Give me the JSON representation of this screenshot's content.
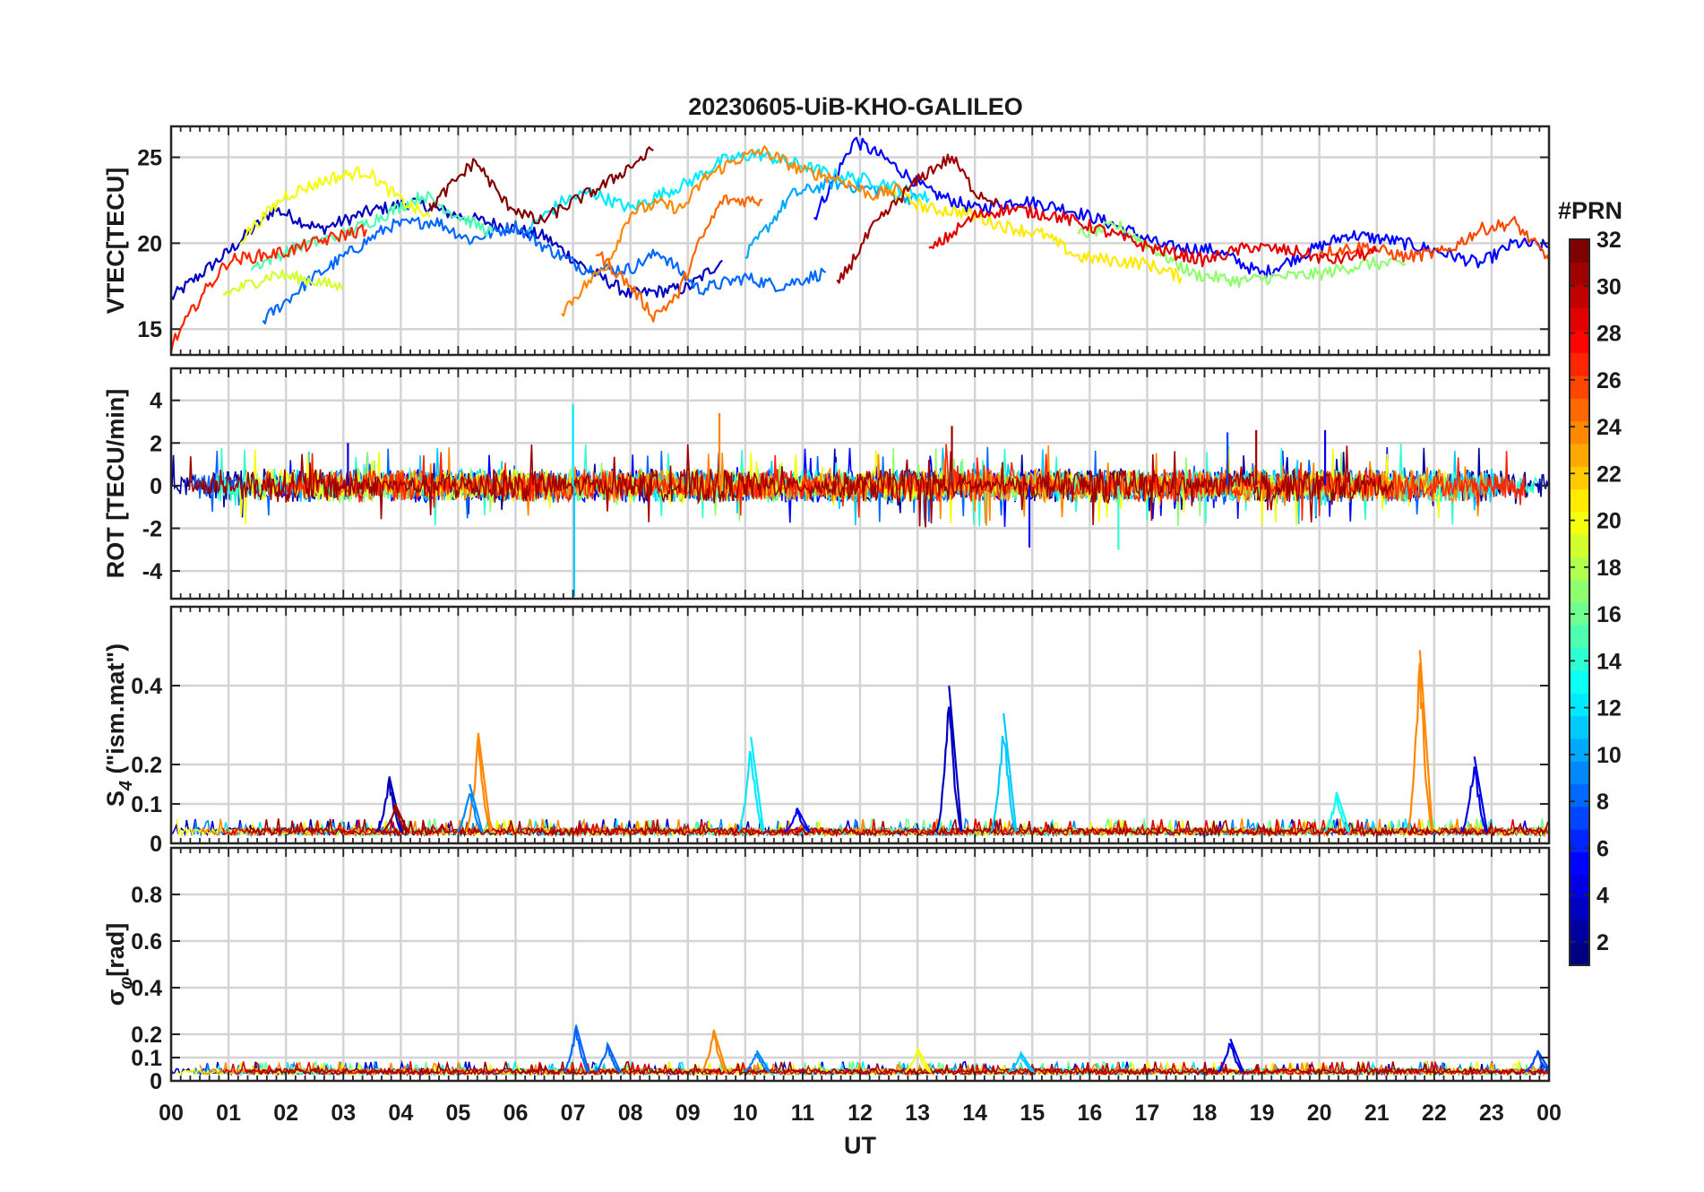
{
  "chart_data": {
    "type": "line",
    "title": "20230605-UiB-KHO-GALILEO",
    "xlabel": "UT",
    "x_ticks": [
      "00",
      "01",
      "02",
      "03",
      "04",
      "05",
      "06",
      "07",
      "08",
      "09",
      "10",
      "11",
      "12",
      "13",
      "14",
      "15",
      "16",
      "17",
      "18",
      "19",
      "20",
      "21",
      "22",
      "23",
      "00"
    ],
    "xlim": [
      0,
      24
    ],
    "colorbar": {
      "label": "#PRN",
      "range": [
        1,
        32
      ],
      "ticks": [
        "2",
        "4",
        "6",
        "8",
        "10",
        "12",
        "14",
        "16",
        "18",
        "20",
        "22",
        "24",
        "26",
        "28",
        "30",
        "32"
      ],
      "colormap": "jet"
    },
    "panels": [
      {
        "ylabel": "VTEC[TECU]",
        "ylim": [
          13.5,
          26.8
        ],
        "ytick_values": [
          15,
          20,
          25
        ],
        "ytick_labels": [
          "15",
          "20",
          "25"
        ],
        "series": [
          {
            "prn": 3,
            "points": [
              [
                0.0,
                16.8
              ],
              [
                1.0,
                19.5
              ],
              [
                1.8,
                22.0
              ],
              [
                2.6,
                20.8
              ],
              [
                3.4,
                21.8
              ],
              [
                4.2,
                22.4
              ],
              [
                5.0,
                21.6
              ],
              [
                5.8,
                21.0
              ],
              [
                6.5,
                20.4
              ],
              [
                7.2,
                18.6
              ],
              [
                8.0,
                17.0
              ],
              [
                9.0,
                17.4
              ],
              [
                9.6,
                19.0
              ]
            ]
          },
          {
            "prn": 5,
            "points": [
              [
                11.2,
                21.5
              ],
              [
                11.9,
                26.0
              ],
              [
                12.4,
                25.0
              ],
              [
                13.2,
                23.0
              ],
              [
                14.0,
                22.0
              ],
              [
                14.8,
                22.5
              ],
              [
                15.6,
                22.0
              ],
              [
                16.5,
                21.0
              ],
              [
                17.3,
                19.8
              ],
              [
                18.2,
                19.6
              ],
              [
                19.0,
                18.2
              ],
              [
                19.8,
                19.5
              ],
              [
                20.5,
                20.5
              ],
              [
                21.2,
                20.2
              ],
              [
                22.0,
                19.6
              ],
              [
                22.8,
                18.8
              ],
              [
                23.4,
                20.0
              ],
              [
                24.0,
                19.8
              ]
            ]
          },
          {
            "prn": 8,
            "points": [
              [
                1.6,
                15.5
              ],
              [
                2.4,
                17.8
              ],
              [
                3.0,
                19.2
              ],
              [
                3.8,
                21.0
              ],
              [
                4.6,
                21.3
              ],
              [
                5.2,
                20.2
              ],
              [
                6.0,
                21.0
              ],
              [
                6.5,
                19.8
              ],
              [
                7.2,
                18.5
              ],
              [
                8.0,
                18.5
              ],
              [
                8.5,
                19.5
              ],
              [
                9.2,
                17.3
              ],
              [
                10.0,
                18.0
              ],
              [
                10.6,
                17.5
              ],
              [
                11.4,
                18.3
              ]
            ]
          },
          {
            "prn": 10,
            "points": [
              [
                10.0,
                19.2
              ],
              [
                10.8,
                22.8
              ],
              [
                11.5,
                23.5
              ],
              [
                12.5,
                23.0
              ],
              [
                13.0,
                22.5
              ]
            ]
          },
          {
            "prn": 12,
            "points": [
              [
                6.2,
                20.8
              ],
              [
                6.8,
                22.4
              ],
              [
                7.3,
                23.0
              ],
              [
                8.0,
                22.0
              ],
              [
                8.5,
                22.8
              ],
              [
                9.0,
                23.5
              ],
              [
                9.6,
                24.8
              ],
              [
                10.2,
                25.2
              ],
              [
                10.9,
                24.6
              ],
              [
                11.5,
                24.0
              ],
              [
                12.3,
                23.6
              ],
              [
                13.2,
                22.6
              ]
            ]
          },
          {
            "prn": 15,
            "points": [
              [
                1.4,
                18.6
              ],
              [
                2.2,
                19.8
              ],
              [
                3.0,
                20.5
              ],
              [
                3.8,
                21.8
              ],
              [
                4.4,
                22.8
              ],
              [
                5.0,
                21.6
              ],
              [
                5.6,
                20.6
              ]
            ]
          },
          {
            "prn": 17,
            "points": [
              [
                15.8,
                20.5
              ],
              [
                16.5,
                21.0
              ],
              [
                17.2,
                19.5
              ],
              [
                17.8,
                18.2
              ],
              [
                18.6,
                17.8
              ],
              [
                19.2,
                18.0
              ],
              [
                20.0,
                18.2
              ],
              [
                20.8,
                18.8
              ],
              [
                21.5,
                18.8
              ]
            ]
          },
          {
            "prn": 19,
            "points": [
              [
                0.9,
                17.0
              ],
              [
                1.8,
                18.2
              ],
              [
                2.5,
                17.8
              ],
              [
                3.0,
                17.4
              ]
            ]
          },
          {
            "prn": 20,
            "points": [
              [
                1.2,
                20.2
              ],
              [
                2.0,
                22.8
              ],
              [
                2.8,
                23.8
              ],
              [
                3.4,
                24.2
              ],
              [
                4.0,
                22.5
              ],
              [
                4.5,
                21.5
              ]
            ]
          },
          {
            "prn": 21,
            "points": [
              [
                12.5,
                23.0
              ],
              [
                13.2,
                22.0
              ],
              [
                13.8,
                21.8
              ],
              [
                14.5,
                21.0
              ],
              [
                15.2,
                20.5
              ],
              [
                15.8,
                19.2
              ],
              [
                16.4,
                19.0
              ],
              [
                17.0,
                18.8
              ],
              [
                17.6,
                18.0
              ]
            ]
          },
          {
            "prn": 24,
            "points": [
              [
                6.8,
                16.0
              ],
              [
                7.2,
                17.5
              ],
              [
                7.6,
                18.8
              ],
              [
                8.0,
                21.8
              ],
              [
                8.5,
                22.3
              ],
              [
                8.9,
                22.0
              ],
              [
                9.3,
                23.8
              ],
              [
                9.8,
                24.8
              ],
              [
                10.3,
                25.4
              ],
              [
                11.0,
                24.2
              ],
              [
                11.6,
                23.8
              ],
              [
                12.2,
                22.8
              ],
              [
                12.8,
                23.2
              ]
            ]
          },
          {
            "prn": 25,
            "points": [
              [
                7.4,
                19.5
              ],
              [
                8.0,
                17.5
              ],
              [
                8.4,
                15.8
              ],
              [
                8.8,
                16.8
              ],
              [
                9.2,
                20.0
              ],
              [
                9.6,
                22.5
              ],
              [
                10.3,
                22.5
              ]
            ]
          },
          {
            "prn": 26,
            "points": [
              [
                20.0,
                19.5
              ],
              [
                20.8,
                19.8
              ],
              [
                21.5,
                19.2
              ],
              [
                22.2,
                19.5
              ],
              [
                22.8,
                20.8
              ],
              [
                23.4,
                21.2
              ],
              [
                24.0,
                19.0
              ]
            ]
          },
          {
            "prn": 27,
            "points": [
              [
                0.0,
                14.0
              ],
              [
                0.5,
                16.8
              ],
              [
                1.0,
                19.0
              ],
              [
                2.0,
                19.5
              ],
              [
                3.0,
                20.5
              ],
              [
                3.4,
                20.8
              ]
            ]
          },
          {
            "prn": 29,
            "points": [
              [
                13.2,
                19.5
              ],
              [
                14.0,
                21.6
              ],
              [
                14.6,
                22.0
              ],
              [
                15.4,
                21.6
              ],
              [
                16.0,
                21.0
              ],
              [
                17.0,
                19.8
              ],
              [
                18.0,
                19.0
              ],
              [
                18.8,
                19.8
              ],
              [
                19.6,
                19.5
              ],
              [
                20.2,
                19.0
              ],
              [
                21.0,
                19.5
              ]
            ]
          },
          {
            "prn": 31,
            "points": [
              [
                11.6,
                17.5
              ],
              [
                12.2,
                20.8
              ],
              [
                12.8,
                23.0
              ],
              [
                13.2,
                24.2
              ],
              [
                13.6,
                25.0
              ],
              [
                14.0,
                23.0
              ],
              [
                14.4,
                22.4
              ]
            ]
          },
          {
            "prn": 32,
            "points": [
              [
                4.5,
                22.0
              ],
              [
                5.0,
                23.8
              ],
              [
                5.3,
                24.8
              ],
              [
                5.8,
                22.4
              ],
              [
                6.4,
                21.2
              ],
              [
                7.0,
                22.4
              ],
              [
                7.6,
                23.5
              ],
              [
                8.0,
                24.5
              ],
              [
                8.4,
                25.4
              ]
            ]
          }
        ]
      },
      {
        "ylabel": "ROT [TECU/min]",
        "ylim": [
          -5.3,
          5.5
        ],
        "ytick_values": [
          -4,
          -2,
          0,
          2,
          4
        ],
        "ytick_labels": [
          "-4",
          "-2",
          "0",
          "2",
          "4"
        ],
        "spikes": [
          {
            "t": 7.02,
            "v": -5.2,
            "prn": 11
          },
          {
            "t": 7.0,
            "v": 3.8,
            "prn": 12
          },
          {
            "t": 9.55,
            "v": 3.4,
            "prn": 24
          },
          {
            "t": 3.08,
            "v": 2.0,
            "prn": 4
          },
          {
            "t": 14.95,
            "v": -2.9,
            "prn": 5
          },
          {
            "t": 18.4,
            "v": 2.5,
            "prn": 7
          },
          {
            "t": 18.9,
            "v": 2.6,
            "prn": 31
          },
          {
            "t": 20.1,
            "v": 2.6,
            "prn": 4
          },
          {
            "t": 16.5,
            "v": -3.0,
            "prn": 14
          },
          {
            "t": 13.6,
            "v": 2.8,
            "prn": 31
          }
        ]
      },
      {
        "ylabel": "S4 (\"ism.mat\")",
        "ylabel_main": "S",
        "ylabel_sub": "4",
        "ylabel_rest": " (\"ism.mat\")",
        "ylim": [
          0,
          0.6
        ],
        "ytick_values": [
          0,
          0.1,
          0.2,
          0.4
        ],
        "ytick_labels": [
          "0",
          "0.1",
          "0.2",
          "0.4"
        ],
        "baseline": 0.03,
        "spikes": [
          {
            "t": 21.75,
            "v": 0.49,
            "prn": 24
          },
          {
            "t": 13.55,
            "v": 0.4,
            "prn": 3
          },
          {
            "t": 14.5,
            "v": 0.33,
            "prn": 11
          },
          {
            "t": 5.35,
            "v": 0.28,
            "prn": 24
          },
          {
            "t": 10.1,
            "v": 0.27,
            "prn": 12
          },
          {
            "t": 22.7,
            "v": 0.22,
            "prn": 4
          },
          {
            "t": 3.8,
            "v": 0.17,
            "prn": 3
          },
          {
            "t": 5.2,
            "v": 0.15,
            "prn": 9
          },
          {
            "t": 20.3,
            "v": 0.13,
            "prn": 13
          },
          {
            "t": 10.9,
            "v": 0.09,
            "prn": 5
          },
          {
            "t": 3.9,
            "v": 0.1,
            "prn": 31
          }
        ]
      },
      {
        "ylabel": "σφ[rad]",
        "ylabel_main": "σ",
        "ylabel_sub": "φ",
        "ylabel_rest": "[rad]",
        "ylim": [
          0,
          1.0
        ],
        "ytick_values": [
          0,
          0.1,
          0.2,
          0.4,
          0.6,
          0.8
        ],
        "ytick_labels": [
          "0",
          "0.1",
          "0.2",
          "0.4",
          "0.6",
          "0.8"
        ],
        "baseline": 0.04,
        "spikes": [
          {
            "t": 7.05,
            "v": 0.24,
            "prn": 8
          },
          {
            "t": 9.45,
            "v": 0.22,
            "prn": 24
          },
          {
            "t": 7.6,
            "v": 0.16,
            "prn": 8
          },
          {
            "t": 18.45,
            "v": 0.18,
            "prn": 4
          },
          {
            "t": 23.8,
            "v": 0.13,
            "prn": 7
          },
          {
            "t": 10.2,
            "v": 0.13,
            "prn": 9
          },
          {
            "t": 13.0,
            "v": 0.14,
            "prn": 20
          },
          {
            "t": 14.8,
            "v": 0.12,
            "prn": 11
          }
        ]
      }
    ]
  }
}
